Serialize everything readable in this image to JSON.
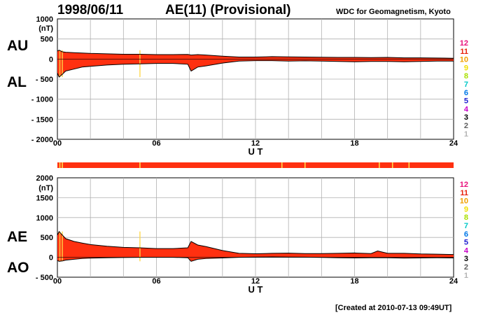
{
  "header": {
    "date": "1998/06/11",
    "index": "AE(11) (Provisional)",
    "source": "WDC for Geomagnetism, Kyoto"
  },
  "footer": {
    "created": "[Created at 2010-07-13 09:49UT]"
  },
  "station_legend": {
    "labels": [
      "12",
      "11",
      "10",
      "9",
      "8",
      "7",
      "6",
      "5",
      "4",
      "3",
      "2",
      "1"
    ],
    "colors": [
      "#e8127c",
      "#e8220c",
      "#f0a000",
      "#f0e000",
      "#a8e000",
      "#00c8c8",
      "#0078e8",
      "#2020d0",
      "#c800c8",
      "#000000",
      "#606060",
      "#b4b4b4"
    ]
  },
  "colors": {
    "fill": "#ff3010",
    "outline": "#000000",
    "highlight": "#ffd84a",
    "grid": "#b0b0b0"
  },
  "chart_data": [
    {
      "type": "area",
      "panel": "AU/AL",
      "upper_label": "AU",
      "lower_label": "AL",
      "ylabel": "(nT)",
      "xlabel": "U T",
      "ylim": [
        -2000,
        1000
      ],
      "yticks": [
        "1000",
        "500",
        "0",
        "- 500",
        "- 1000",
        "- 1500",
        "- 2000"
      ],
      "ytick_values": [
        1000,
        500,
        0,
        -500,
        -1000,
        -1500,
        -2000
      ],
      "xlim": [
        0,
        24
      ],
      "xticks": [
        "00",
        "06",
        "12",
        "18",
        "24"
      ],
      "xtick_values": [
        0,
        6,
        12,
        18,
        24
      ],
      "grid": true,
      "series": [
        {
          "name": "AU",
          "x": [
            0,
            0.1,
            0.3,
            0.5,
            1,
            1.5,
            2,
            3,
            4,
            5,
            6,
            7,
            7.9,
            8.1,
            8.5,
            9,
            10,
            11,
            12,
            13,
            14,
            15,
            16,
            17,
            18,
            19,
            20,
            21,
            22,
            23,
            24
          ],
          "values": [
            200,
            220,
            180,
            170,
            160,
            150,
            140,
            130,
            120,
            120,
            110,
            110,
            115,
            100,
            110,
            100,
            70,
            50,
            50,
            60,
            55,
            50,
            45,
            40,
            40,
            35,
            40,
            30,
            30,
            25,
            20
          ]
        },
        {
          "name": "AL",
          "x": [
            0,
            0.1,
            0.3,
            0.5,
            1,
            1.5,
            2,
            3,
            4,
            5,
            6,
            7,
            7.9,
            8.1,
            8.5,
            9,
            10,
            11,
            12,
            13,
            14,
            15,
            16,
            17,
            18,
            19,
            20,
            21,
            22,
            23,
            24
          ],
          "values": [
            -350,
            -450,
            -380,
            -300,
            -250,
            -200,
            -180,
            -150,
            -130,
            -120,
            -110,
            -110,
            -130,
            -300,
            -200,
            -170,
            -100,
            -50,
            -40,
            -40,
            -50,
            -45,
            -50,
            -60,
            -70,
            -60,
            -60,
            -70,
            -60,
            -50,
            -50
          ]
        }
      ]
    },
    {
      "type": "area",
      "panel": "AE/AO",
      "upper_label": "AE",
      "lower_label": "AO",
      "ylabel": "(nT)",
      "xlabel": "U T",
      "ylim": [
        -500,
        2000
      ],
      "yticks": [
        "2000",
        "1500",
        "1000",
        "500",
        "0",
        "- 500"
      ],
      "ytick_values": [
        2000,
        1500,
        1000,
        500,
        0,
        -500
      ],
      "xlim": [
        0,
        24
      ],
      "xticks": [
        "00",
        "06",
        "12",
        "18",
        "24"
      ],
      "xtick_values": [
        0,
        6,
        12,
        18,
        24
      ],
      "grid": true,
      "series": [
        {
          "name": "AE",
          "x": [
            0,
            0.1,
            0.3,
            0.5,
            1,
            1.5,
            2,
            3,
            4,
            5,
            6,
            7,
            7.9,
            8.1,
            8.5,
            9,
            10,
            11,
            12,
            13,
            14,
            15,
            16,
            17,
            18,
            19,
            19.4,
            20,
            21,
            22,
            23,
            24
          ],
          "values": [
            560,
            650,
            560,
            470,
            400,
            360,
            320,
            280,
            250,
            240,
            220,
            220,
            240,
            400,
            310,
            270,
            170,
            100,
            90,
            100,
            105,
            95,
            95,
            100,
            110,
            95,
            160,
            100,
            100,
            85,
            80,
            70
          ]
        },
        {
          "name": "AO",
          "x": [
            0,
            0.1,
            0.3,
            0.5,
            1,
            1.5,
            2,
            3,
            4,
            5,
            6,
            7,
            7.9,
            8.1,
            8.5,
            9,
            10,
            11,
            12,
            13,
            14,
            15,
            16,
            17,
            18,
            19,
            20,
            21,
            22,
            23,
            24
          ],
          "values": [
            -80,
            -100,
            -90,
            -70,
            -50,
            -30,
            -20,
            -10,
            -5,
            0,
            0,
            0,
            -10,
            -100,
            -50,
            -30,
            -15,
            0,
            5,
            10,
            5,
            3,
            -3,
            -10,
            -15,
            -12,
            -10,
            -20,
            -15,
            -12,
            -15
          ]
        }
      ],
      "stations_bar": {
        "fill": "#ff3010",
        "highlight_hours": [
          0.15,
          0.3,
          5.0,
          13.6,
          15.0,
          19.5,
          20.3,
          21.3
        ]
      }
    }
  ]
}
